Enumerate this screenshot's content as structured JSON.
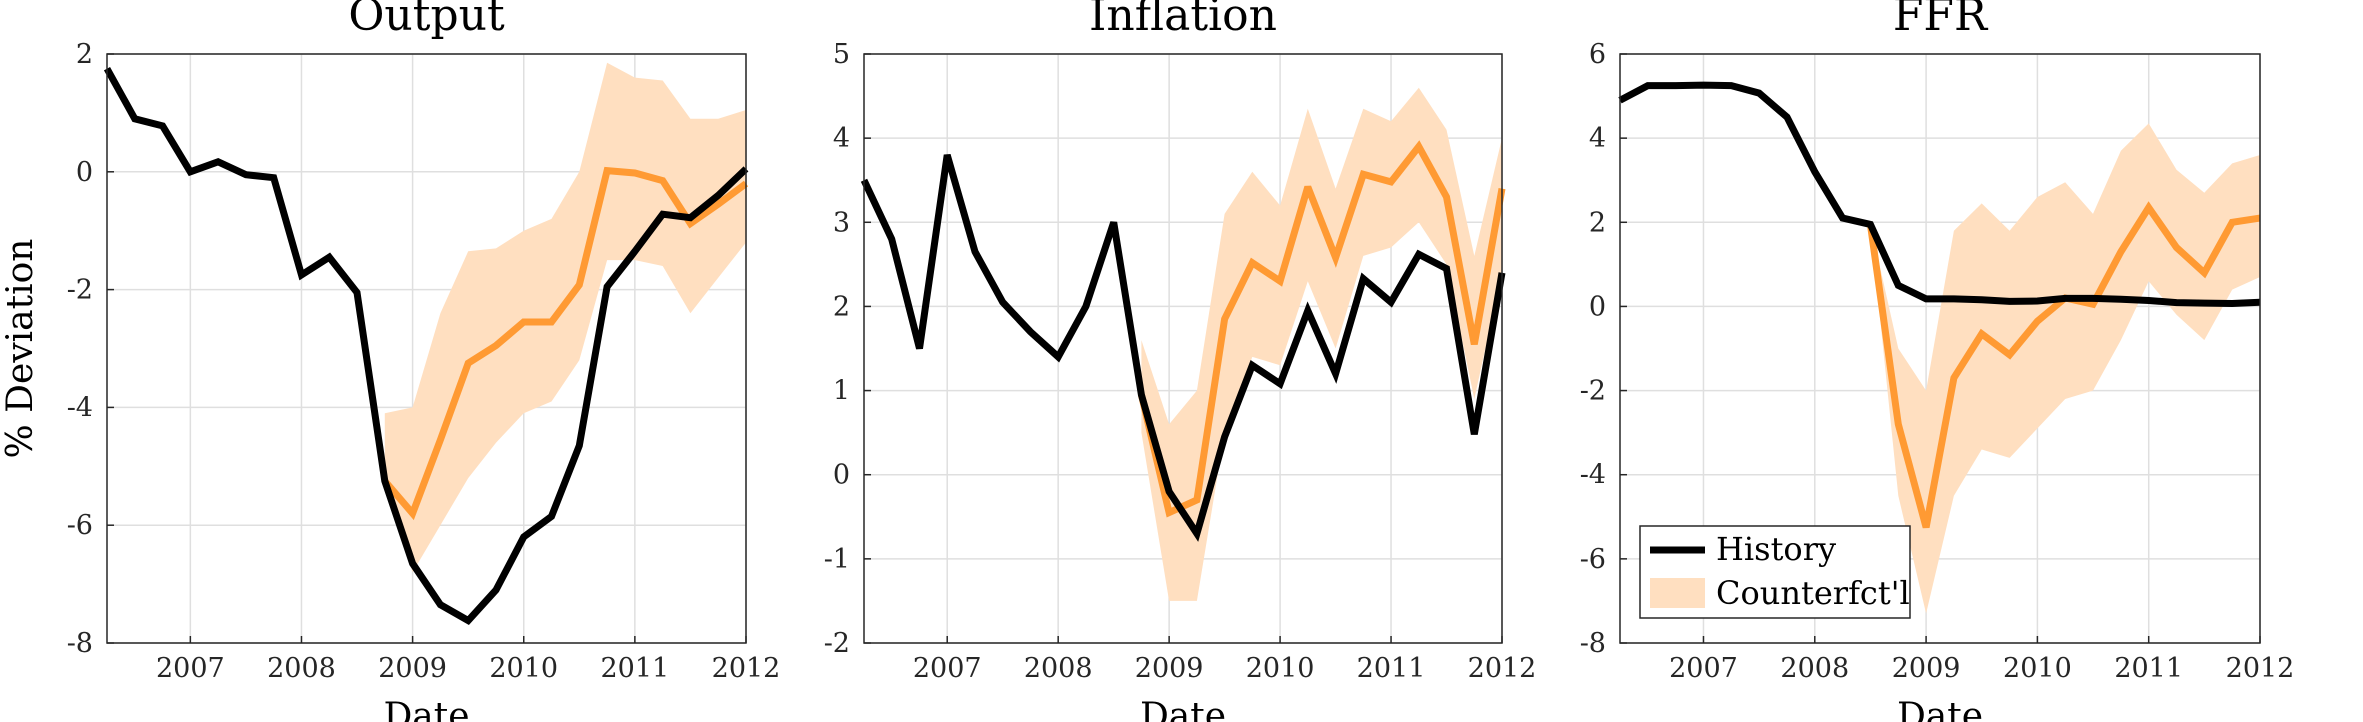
{
  "colors": {
    "history": "#000000",
    "counterfactual": "#ff9a33",
    "band": "#ffdfc0"
  },
  "chart_data": [
    {
      "type": "line",
      "title": "Output",
      "xlabel": "Date",
      "ylabel": "% Deviation",
      "xlim": [
        2006.25,
        2012.0
      ],
      "ylim": [
        -8,
        2
      ],
      "xticks": [
        2007,
        2008,
        2009,
        2010,
        2011,
        2012
      ],
      "yticks": [
        -8,
        -6,
        -4,
        -2,
        0,
        2
      ],
      "grid": true,
      "series": [
        {
          "name": "History",
          "x": [
            2006.25,
            2006.5,
            2006.75,
            2007.0,
            2007.25,
            2007.5,
            2007.75,
            2008.0,
            2008.25,
            2008.5,
            2008.75,
            2009.0,
            2009.25,
            2009.5,
            2009.75,
            2010.0,
            2010.25,
            2010.5,
            2010.75,
            2011.0,
            2011.25,
            2011.5,
            2011.75,
            2012.0
          ],
          "y": [
            1.75,
            0.9,
            0.78,
            0.0,
            0.17,
            -0.05,
            -0.1,
            -1.75,
            -1.45,
            -2.05,
            -5.25,
            -6.65,
            -7.35,
            -7.62,
            -7.1,
            -6.2,
            -5.85,
            -4.65,
            -1.95,
            -1.35,
            -0.72,
            -0.78,
            -0.4,
            0.05
          ]
        },
        {
          "name": "Counterfct'l",
          "x": [
            2008.75,
            2009.0,
            2009.25,
            2009.5,
            2009.75,
            2010.0,
            2010.25,
            2010.5,
            2010.75,
            2011.0,
            2011.25,
            2011.5,
            2011.75,
            2012.0
          ],
          "y": [
            -5.25,
            -5.8,
            -4.55,
            -3.25,
            -2.95,
            -2.55,
            -2.55,
            -1.92,
            0.02,
            -0.02,
            -0.15,
            -0.88,
            -0.55,
            -0.2
          ],
          "lower": [
            -5.25,
            -6.8,
            -6.0,
            -5.2,
            -4.6,
            -4.1,
            -3.9,
            -3.2,
            -1.5,
            -1.5,
            -1.6,
            -2.4,
            -1.8,
            -1.2
          ],
          "upper": [
            -4.1,
            -4.0,
            -2.4,
            -1.35,
            -1.3,
            -1.0,
            -0.8,
            0.0,
            1.85,
            1.6,
            1.55,
            0.9,
            0.9,
            1.05
          ]
        }
      ]
    },
    {
      "type": "line",
      "title": "Inflation",
      "xlabel": "Date",
      "ylabel": "",
      "xlim": [
        2006.25,
        2012.0
      ],
      "ylim": [
        -2,
        5
      ],
      "xticks": [
        2007,
        2008,
        2009,
        2010,
        2011,
        2012
      ],
      "yticks": [
        -2,
        -1,
        0,
        1,
        2,
        3,
        4,
        5
      ],
      "grid": true,
      "series": [
        {
          "name": "History",
          "x": [
            2006.25,
            2006.5,
            2006.75,
            2007.0,
            2007.25,
            2007.5,
            2007.75,
            2008.0,
            2008.25,
            2008.5,
            2008.75,
            2009.0,
            2009.25,
            2009.5,
            2009.75,
            2010.0,
            2010.25,
            2010.5,
            2010.75,
            2011.0,
            2011.25,
            2011.5,
            2011.75,
            2012.0
          ],
          "y": [
            3.5,
            2.8,
            1.5,
            3.8,
            2.65,
            2.05,
            1.7,
            1.4,
            2.0,
            3.0,
            0.95,
            -0.2,
            -0.7,
            0.45,
            1.3,
            1.08,
            1.95,
            1.2,
            2.33,
            2.05,
            2.62,
            2.45,
            0.48,
            2.4
          ]
        },
        {
          "name": "Counterfct'l",
          "x": [
            2008.75,
            2009.0,
            2009.25,
            2009.5,
            2009.75,
            2010.0,
            2010.25,
            2010.5,
            2010.75,
            2011.0,
            2011.25,
            2011.5,
            2011.75,
            2012.0
          ],
          "y": [
            0.95,
            -0.45,
            -0.3,
            1.85,
            2.52,
            2.3,
            3.42,
            2.58,
            3.57,
            3.48,
            3.9,
            3.3,
            1.55,
            3.4
          ],
          "lower": [
            0.5,
            -1.5,
            -1.5,
            0.5,
            1.4,
            1.3,
            2.3,
            1.5,
            2.6,
            2.7,
            3.0,
            2.5,
            0.9,
            2.4
          ],
          "upper": [
            1.6,
            0.6,
            1.0,
            3.1,
            3.6,
            3.2,
            4.35,
            3.4,
            4.35,
            4.2,
            4.6,
            4.1,
            2.6,
            4.0
          ]
        }
      ]
    },
    {
      "type": "line",
      "title": "FFR",
      "xlabel": "Date",
      "ylabel": "",
      "xlim": [
        2006.25,
        2012.0
      ],
      "ylim": [
        -8,
        6
      ],
      "xticks": [
        2007,
        2008,
        2009,
        2010,
        2011,
        2012
      ],
      "yticks": [
        -8,
        -6,
        -4,
        -2,
        0,
        2,
        4,
        6
      ],
      "grid": true,
      "legend": {
        "location": "lower-left",
        "entries": [
          "History",
          "Counterfct'l"
        ]
      },
      "series": [
        {
          "name": "History",
          "x": [
            2006.25,
            2006.5,
            2006.75,
            2007.0,
            2007.25,
            2007.5,
            2007.75,
            2008.0,
            2008.25,
            2008.5,
            2008.75,
            2009.0,
            2009.25,
            2009.5,
            2009.75,
            2010.0,
            2010.25,
            2010.5,
            2010.75,
            2011.0,
            2011.25,
            2011.5,
            2011.75,
            2012.0
          ],
          "y": [
            4.9,
            5.25,
            5.25,
            5.26,
            5.25,
            5.07,
            4.5,
            3.2,
            2.1,
            1.95,
            0.5,
            0.18,
            0.18,
            0.16,
            0.12,
            0.13,
            0.19,
            0.19,
            0.17,
            0.14,
            0.09,
            0.08,
            0.07,
            0.1
          ]
        },
        {
          "name": "Counterfct'l",
          "x": [
            2008.5,
            2008.75,
            2009.0,
            2009.25,
            2009.5,
            2009.75,
            2010.0,
            2010.25,
            2010.5,
            2010.75,
            2011.0,
            2011.25,
            2011.5,
            2011.75,
            2012.0
          ],
          "y": [
            1.95,
            -2.8,
            -5.25,
            -1.7,
            -0.65,
            -1.15,
            -0.35,
            0.2,
            0.05,
            1.3,
            2.35,
            1.4,
            0.8,
            2.0,
            2.1
          ],
          "lower": [
            1.95,
            -4.5,
            -7.3,
            -4.5,
            -3.4,
            -3.6,
            -2.9,
            -2.2,
            -2.0,
            -0.8,
            0.6,
            -0.2,
            -0.8,
            0.4,
            0.7
          ],
          "upper": [
            1.95,
            -1.0,
            -2.0,
            1.8,
            2.45,
            1.8,
            2.6,
            2.95,
            2.2,
            3.7,
            4.35,
            3.25,
            2.7,
            3.4,
            3.6
          ]
        }
      ]
    }
  ]
}
